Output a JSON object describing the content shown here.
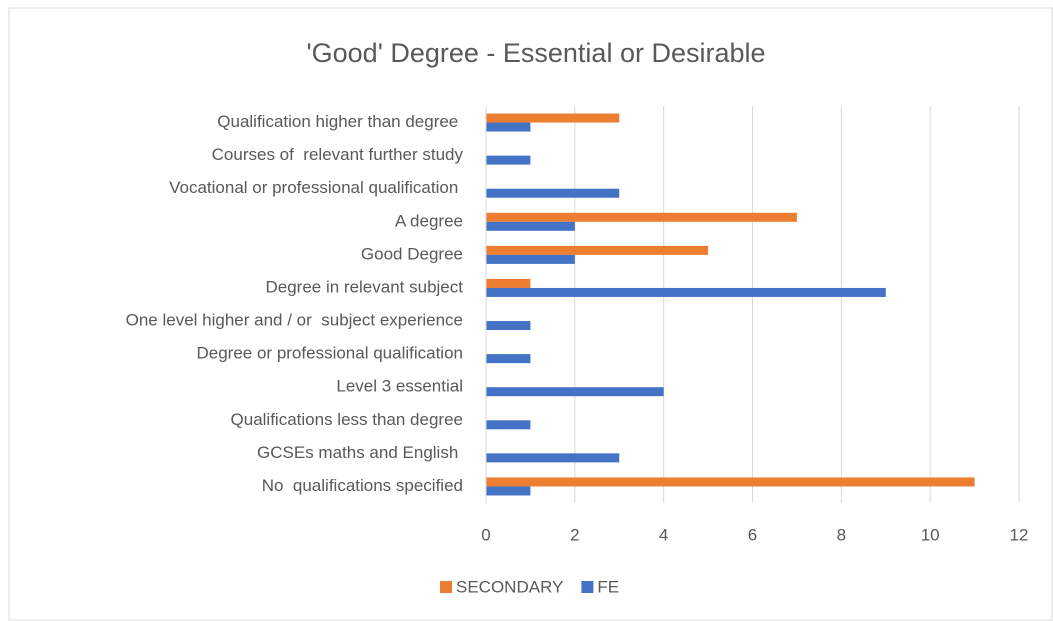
{
  "chart_data": {
    "type": "hbar",
    "title": "'Good' Degree - Essential or Desirable",
    "categories": [
      "Qualification higher than degree ",
      "Courses of  relevant further study",
      "Vocational or professional qualification ",
      "A degree",
      "Good Degree",
      "Degree in relevant subject",
      "One level higher and / or  subject experience",
      "Degree or professional qualification",
      "Level 3 essential",
      "Qualifications less than degree",
      "GCSEs maths and English ",
      "No  qualifications specified"
    ],
    "series": [
      {
        "name": "SECONDARY",
        "color": "#ed7d31",
        "values": [
          3,
          null,
          null,
          7,
          5,
          1,
          null,
          null,
          null,
          null,
          null,
          11
        ]
      },
      {
        "name": "FE",
        "color": "#4472c4",
        "values": [
          1,
          1,
          3,
          2,
          2,
          9,
          1,
          1,
          4,
          1,
          3,
          1
        ]
      }
    ],
    "xlim": [
      0,
      12
    ],
    "xticks": [
      0,
      2,
      4,
      6,
      8,
      10,
      12
    ],
    "grid": true,
    "legend": "bottom"
  }
}
